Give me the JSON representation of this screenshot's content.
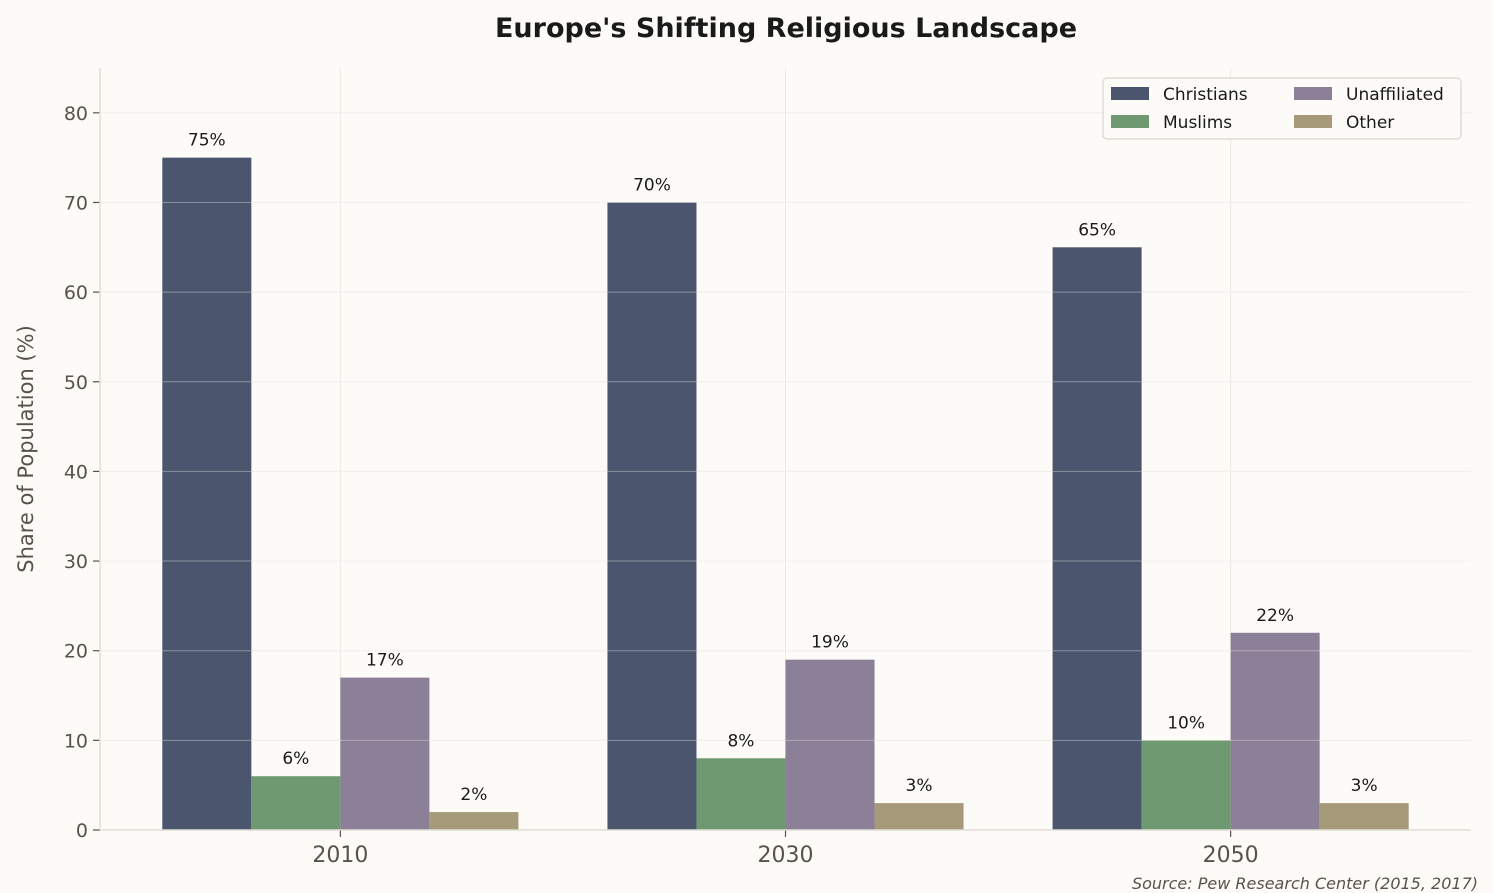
{
  "chart_data": {
    "type": "bar",
    "title": "Europe's Shifting Religious Landscape",
    "xlabel": "",
    "ylabel": "Share of Population (%)",
    "categories": [
      "2010",
      "2030",
      "2050"
    ],
    "series": [
      {
        "name": "Christians",
        "values": [
          75,
          70,
          65
        ],
        "labels": [
          "75%",
          "70%",
          "65%"
        ],
        "color": "#4b566e"
      },
      {
        "name": "Muslims",
        "values": [
          6,
          8,
          10
        ],
        "labels": [
          "6%",
          "8%",
          "10%"
        ],
        "color": "#6f9970"
      },
      {
        "name": "Unaffiliated",
        "values": [
          17,
          19,
          22
        ],
        "labels": [
          "17%",
          "19%",
          "22%"
        ],
        "color": "#8c8098"
      },
      {
        "name": "Other",
        "values": [
          2,
          3,
          3
        ],
        "labels": [
          "2%",
          "3%",
          "3%"
        ],
        "color": "#a69a7b"
      }
    ],
    "ylim": [
      0,
      85
    ],
    "yticks": [
      0,
      10,
      20,
      30,
      40,
      50,
      60,
      70,
      80
    ],
    "grid": true,
    "legend_placement": "top-right",
    "legend_columns": 2,
    "source_note": "Source: Pew Research Center (2015, 2017)"
  }
}
